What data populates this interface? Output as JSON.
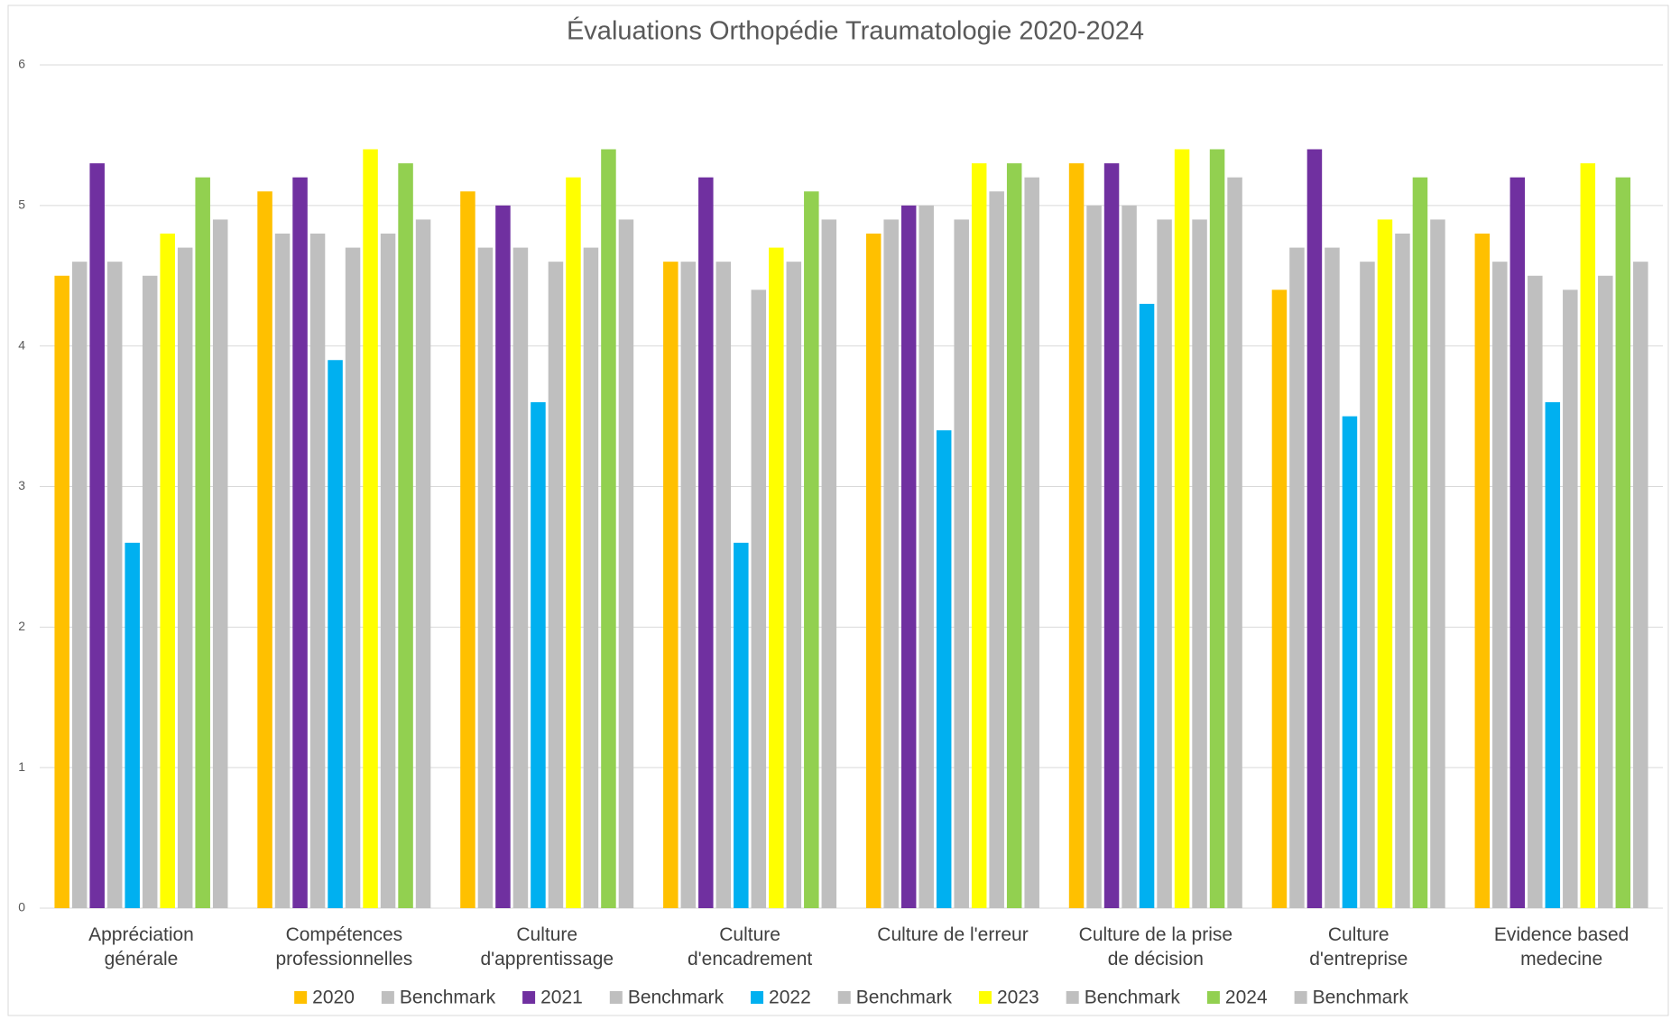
{
  "chart_data": {
    "type": "bar",
    "title": "Évaluations Orthopédie Traumatologie 2020-2024",
    "categories": [
      "Appréciation\ngénérale",
      "Compétences\nprofessionnelles",
      "Culture\nd'apprentissage",
      "Culture\nd'encadrement",
      "Culture de l'erreur",
      "Culture de la prise\nde décision",
      "Culture\nd'entreprise",
      "Evidence based\nmedecine"
    ],
    "series": [
      {
        "name": "2020",
        "color": "#ffc000",
        "values": [
          4.5,
          5.1,
          5.1,
          4.6,
          4.8,
          5.3,
          4.4,
          4.8
        ]
      },
      {
        "name": "Benchmark",
        "color": "#bfbfbf",
        "values": [
          4.6,
          4.8,
          4.7,
          4.6,
          4.9,
          5.0,
          4.7,
          4.6
        ]
      },
      {
        "name": "2021",
        "color": "#7030a0",
        "values": [
          5.3,
          5.2,
          5.0,
          5.2,
          5.0,
          5.3,
          5.4,
          5.2
        ]
      },
      {
        "name": "Benchmark",
        "color": "#bfbfbf",
        "values": [
          4.6,
          4.8,
          4.7,
          4.6,
          5.0,
          5.0,
          4.7,
          4.5
        ]
      },
      {
        "name": "2022",
        "color": "#00b0f0",
        "values": [
          2.6,
          3.9,
          3.6,
          2.6,
          3.4,
          4.3,
          3.5,
          3.6
        ]
      },
      {
        "name": "Benchmark",
        "color": "#bfbfbf",
        "values": [
          4.5,
          4.7,
          4.6,
          4.4,
          4.9,
          4.9,
          4.6,
          4.4
        ]
      },
      {
        "name": "2023",
        "color": "#ffff00",
        "values": [
          4.8,
          5.4,
          5.2,
          4.7,
          5.3,
          5.4,
          4.9,
          5.3
        ]
      },
      {
        "name": "Benchmark",
        "color": "#bfbfbf",
        "values": [
          4.7,
          4.8,
          4.7,
          4.6,
          5.1,
          4.9,
          4.8,
          4.5
        ]
      },
      {
        "name": "2024",
        "color": "#92d050",
        "values": [
          5.2,
          5.3,
          5.4,
          5.1,
          5.3,
          5.4,
          5.2,
          5.2
        ]
      },
      {
        "name": "Benchmark",
        "color": "#bfbfbf",
        "values": [
          4.9,
          4.9,
          4.9,
          4.9,
          5.2,
          5.2,
          4.9,
          4.6
        ]
      }
    ],
    "ylim": [
      0,
      6
    ],
    "yticks": [
      0,
      1,
      2,
      3,
      4,
      5,
      6
    ],
    "grid": true,
    "legend": "bottom"
  }
}
